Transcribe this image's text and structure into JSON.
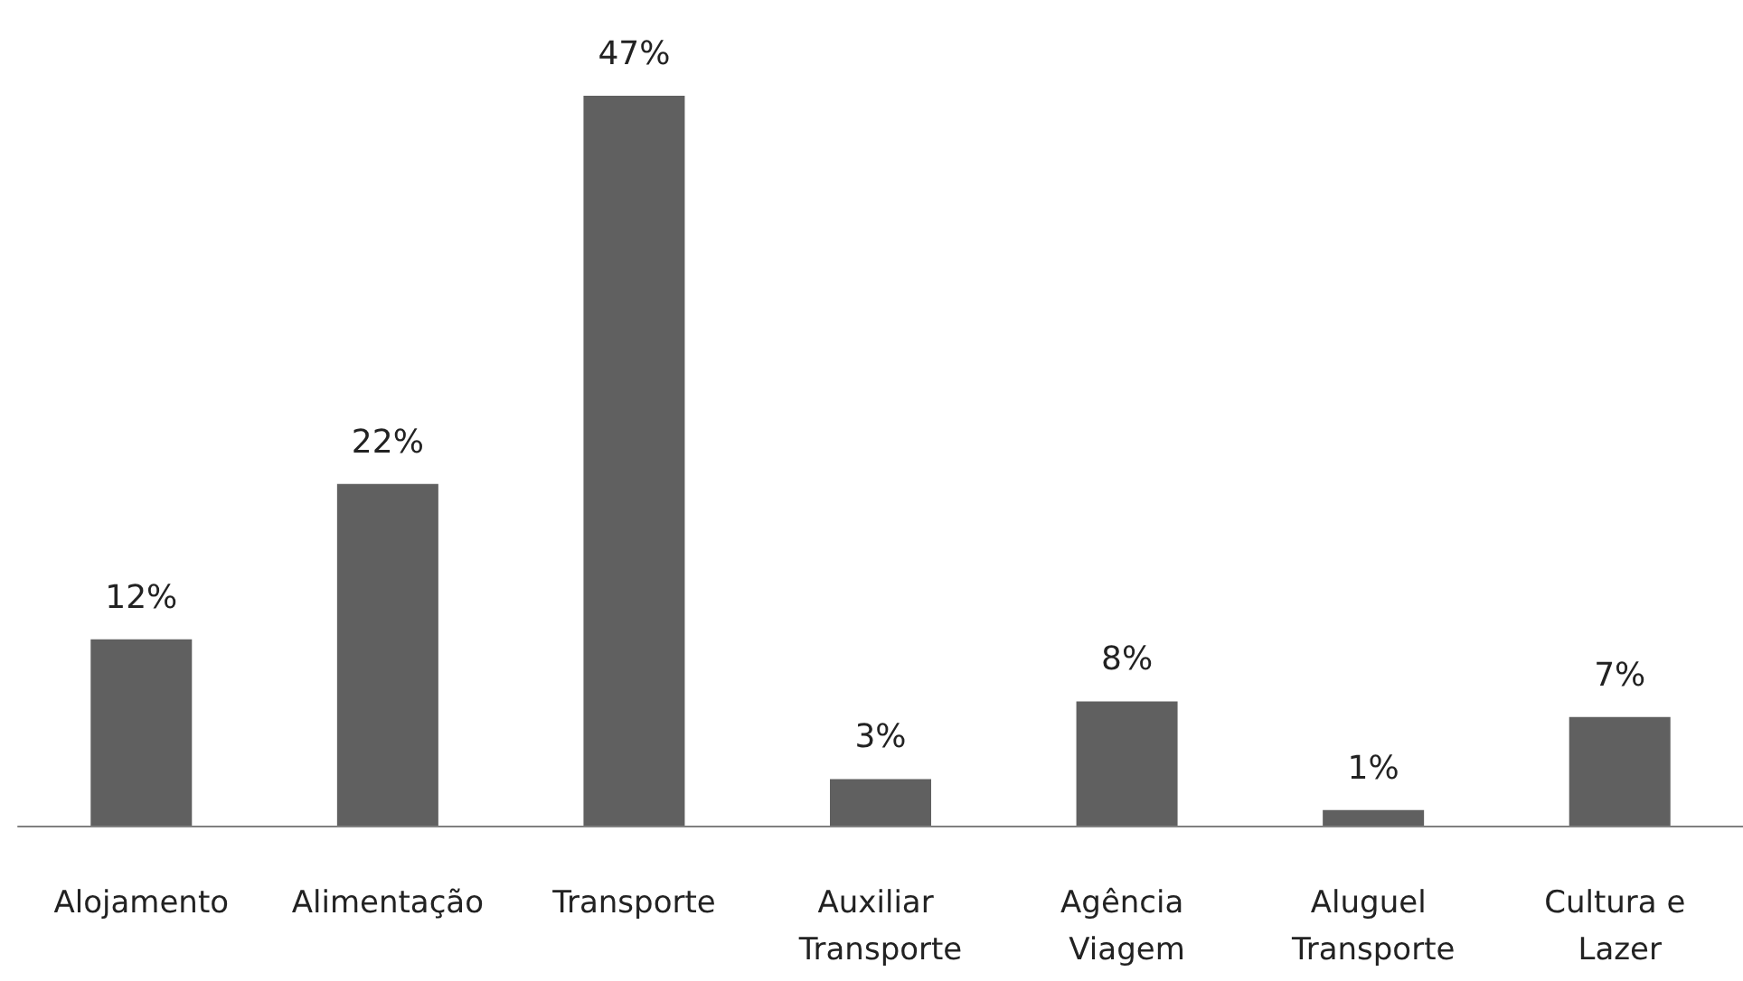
{
  "chart_data": {
    "type": "bar",
    "categories": [
      "Alojamento",
      "Alimentação",
      "Transporte",
      "Auxiliar Transporte",
      "Agência Viagem",
      "Aluguel Transporte",
      "Cultura e Lazer"
    ],
    "values": [
      12,
      22,
      47,
      3,
      8,
      1,
      7
    ],
    "value_labels": [
      "12%",
      "22%",
      "47%",
      "3%",
      "8%",
      "1%",
      "7%"
    ],
    "color": "#606060"
  }
}
